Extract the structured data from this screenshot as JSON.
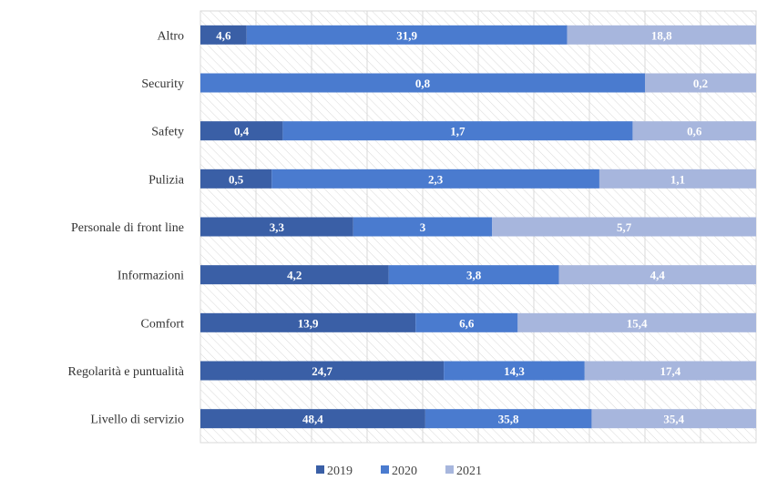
{
  "chart_data": {
    "type": "bar",
    "orientation": "horizontal",
    "stacked": "percent",
    "categories": [
      "Altro",
      "Security",
      "Safety",
      "Pulizia",
      "Personale di front line",
      "Informazioni",
      "Comfort",
      "Regolarità e puntualità",
      "Livello di servizio"
    ],
    "series": [
      {
        "name": "2019",
        "color": "#3A5FA6",
        "values": [
          4.6,
          null,
          0.4,
          0.5,
          3.3,
          4.2,
          13.9,
          24.7,
          48.4
        ],
        "labels": [
          "4,6",
          "",
          "0,4",
          "0,5",
          "3,3",
          "4,2",
          "13,9",
          "24,7",
          "48,4"
        ]
      },
      {
        "name": "2020",
        "color": "#4A7BCF",
        "values": [
          31.9,
          0.8,
          1.7,
          2.3,
          3,
          3.8,
          6.6,
          14.3,
          35.8
        ],
        "labels": [
          "31,9",
          "0,8",
          "1,7",
          "2,3",
          "3",
          "3,8",
          "6,6",
          "14,3",
          "35,8"
        ]
      },
      {
        "name": "2021",
        "color": "#A7B6DD",
        "values": [
          18.8,
          0.2,
          0.6,
          1.1,
          5.7,
          4.4,
          15.4,
          17.4,
          35.4
        ],
        "labels": [
          "18,8",
          "0,2",
          "0,6",
          "1,1",
          "5,7",
          "4,4",
          "15,4",
          "17,4",
          "35,4"
        ]
      }
    ],
    "grid": true,
    "legend": "bottom-center"
  }
}
